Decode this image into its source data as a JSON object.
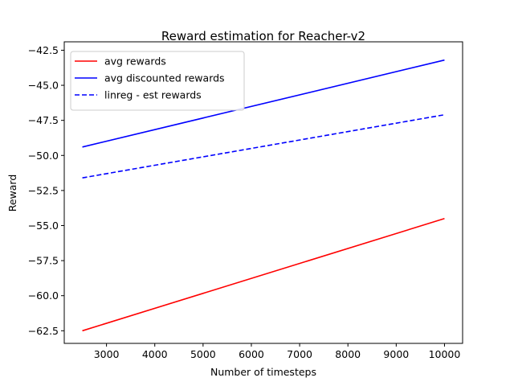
{
  "chart_data": {
    "type": "line",
    "title": "Reward estimation for Reacher-v2",
    "xlabel": "Number of timesteps",
    "ylabel": "Reward",
    "xlim": [
      2125,
      10375
    ],
    "ylim": [
      -63.4,
      -41.9
    ],
    "xticks": [
      3000,
      4000,
      5000,
      6000,
      7000,
      8000,
      9000,
      10000
    ],
    "xtick_labels": [
      "3000",
      "4000",
      "5000",
      "6000",
      "7000",
      "8000",
      "9000",
      "10000"
    ],
    "yticks": [
      -62.5,
      -60.0,
      -57.5,
      -55.0,
      -52.5,
      -50.0,
      -47.5,
      -45.0,
      -42.5
    ],
    "ytick_labels": [
      "−62.5",
      "−60.0",
      "−57.5",
      "−55.0",
      "−52.5",
      "−50.0",
      "−47.5",
      "−45.0",
      "−42.5"
    ],
    "grid": false,
    "legend_position": "top-left",
    "series": [
      {
        "name": "avg rewards",
        "color": "#ff0000",
        "dash": "solid",
        "x": [
          2500,
          10000
        ],
        "y": [
          -62.5,
          -54.5
        ]
      },
      {
        "name": "avg discounted rewards",
        "color": "#0000ff",
        "dash": "solid",
        "x": [
          2500,
          10000
        ],
        "y": [
          -49.4,
          -43.2
        ]
      },
      {
        "name": "linreg - est rewards",
        "color": "#0000ff",
        "dash": "dashed",
        "x": [
          2500,
          10000
        ],
        "y": [
          -51.6,
          -47.1
        ]
      }
    ]
  }
}
